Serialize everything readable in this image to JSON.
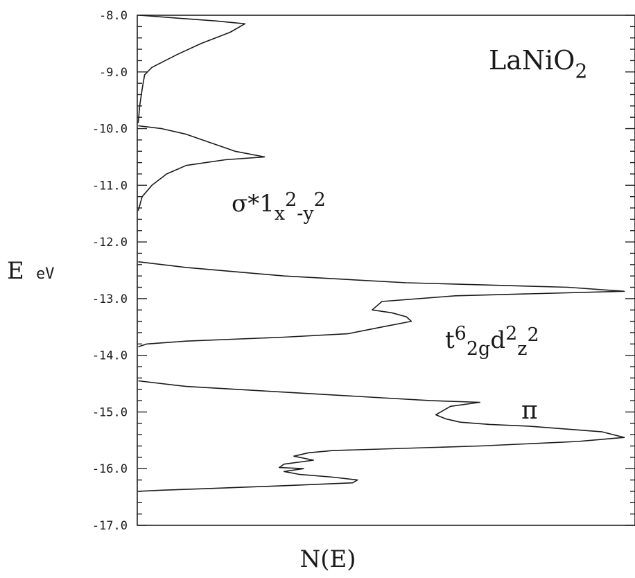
{
  "chart_data": {
    "type": "line",
    "orientation": "y-energy",
    "title": "LaNiO",
    "title_subscript": "2",
    "xlabel": "N(E)",
    "ylabel": "E",
    "ylabel_unit": "eV",
    "ylim": [
      -17.0,
      -8.0
    ],
    "y_ticks": [
      "-8.0",
      "-9.0",
      "-10.0",
      "-11.0",
      "-12.0",
      "-13.0",
      "-14.0",
      "-15.0",
      "-16.0",
      "-17.0"
    ],
    "y_tick_values": [
      -8.0,
      -9.0,
      -10.0,
      -11.0,
      -12.0,
      -13.0,
      -14.0,
      -15.0,
      -16.0,
      -17.0
    ],
    "xlim": [
      0,
      100
    ],
    "grid": false,
    "annotations": {
      "sigma_label": {
        "base": "σ*1",
        "sub1": "x",
        "sup1": "2",
        "sub2": "-y",
        "sup2": "2"
      },
      "t2g_label": {
        "base": "t",
        "sup1": "6",
        "sub1": "2g",
        "mid": "d",
        "sup2": "2",
        "sub2": "z",
        "sup3": "2"
      },
      "pi_label": {
        "text": "π"
      }
    },
    "series": [
      {
        "segments": [
          [
            [
              0.5,
              -8.0
            ],
            [
              8,
              -8.05
            ],
            [
              16,
              -8.1
            ],
            [
              22,
              -8.15
            ],
            [
              19,
              -8.3
            ],
            [
              13,
              -8.5
            ],
            [
              8,
              -8.7
            ],
            [
              3,
              -8.92
            ],
            [
              1.5,
              -9.05
            ],
            [
              1,
              -9.3
            ],
            [
              0.5,
              -9.6
            ],
            [
              0.2,
              -9.9
            ]
          ],
          [
            [
              0.2,
              -9.95
            ],
            [
              5,
              -10.0
            ],
            [
              10,
              -10.1
            ],
            [
              15,
              -10.25
            ],
            [
              20,
              -10.4
            ],
            [
              26,
              -10.5
            ],
            [
              18,
              -10.55
            ],
            [
              10,
              -10.65
            ],
            [
              6,
              -10.8
            ],
            [
              3,
              -11.0
            ],
            [
              1,
              -11.2
            ],
            [
              0.2,
              -11.45
            ]
          ],
          [
            [
              0.2,
              -12.35
            ],
            [
              10,
              -12.45
            ],
            [
              30,
              -12.6
            ],
            [
              55,
              -12.72
            ],
            [
              88,
              -12.8
            ],
            [
              99.5,
              -12.87
            ],
            [
              65,
              -12.95
            ],
            [
              50,
              -13.05
            ],
            [
              48,
              -13.2
            ],
            [
              52,
              -13.25
            ],
            [
              55,
              -13.32
            ],
            [
              56,
              -13.4
            ],
            [
              50,
              -13.5
            ],
            [
              43,
              -13.62
            ],
            [
              30,
              -13.68
            ],
            [
              10,
              -13.75
            ],
            [
              2,
              -13.8
            ],
            [
              0.2,
              -13.85
            ]
          ],
          [
            [
              0.2,
              -14.45
            ],
            [
              10,
              -14.55
            ],
            [
              30,
              -14.65
            ],
            [
              50,
              -14.75
            ],
            [
              60,
              -14.8
            ],
            [
              70,
              -14.83
            ],
            [
              64,
              -14.9
            ],
            [
              62,
              -15.0
            ],
            [
              61,
              -15.05
            ],
            [
              63,
              -15.12
            ],
            [
              66,
              -15.18
            ],
            [
              72,
              -15.22
            ],
            [
              80,
              -15.25
            ],
            [
              95,
              -15.35
            ],
            [
              99.5,
              -15.45
            ],
            [
              90,
              -15.52
            ],
            [
              70,
              -15.6
            ],
            [
              40,
              -15.68
            ],
            [
              35,
              -15.72
            ],
            [
              32,
              -15.78
            ],
            [
              36,
              -15.85
            ],
            [
              30,
              -15.92
            ],
            [
              29,
              -15.98
            ],
            [
              34,
              -16.0
            ],
            [
              30,
              -16.05
            ],
            [
              33,
              -16.1
            ],
            [
              40,
              -16.15
            ],
            [
              45,
              -16.2
            ],
            [
              44,
              -16.25
            ],
            [
              30,
              -16.3
            ],
            [
              15,
              -16.35
            ],
            [
              5,
              -16.38
            ],
            [
              0.2,
              -16.4
            ]
          ]
        ]
      }
    ]
  }
}
